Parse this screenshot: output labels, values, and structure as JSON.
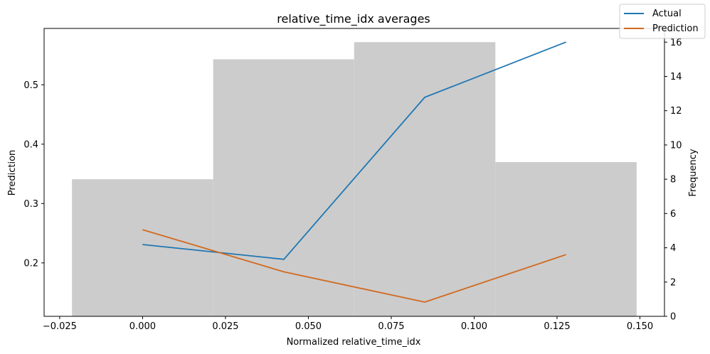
{
  "chart_data": {
    "type": "line",
    "title": "relative_time_idx averages",
    "xlabel": "Normalized relative_time_idx",
    "ylabel": "Prediction",
    "y2label": "Frequency",
    "xlim": [
      -0.0297,
      0.1574
    ],
    "ylim": [
      0.11,
      0.595
    ],
    "y2lim": [
      0,
      16.8
    ],
    "xticks": [
      -0.025,
      0.0,
      0.025,
      0.05,
      0.075,
      0.1,
      0.125,
      0.15
    ],
    "xtick_labels": [
      "−0.025",
      "0.000",
      "0.025",
      "0.050",
      "0.075",
      "0.100",
      "0.125",
      "0.150"
    ],
    "yticks": [
      0.2,
      0.3,
      0.4,
      0.5
    ],
    "ytick_labels": [
      "0.2",
      "0.3",
      "0.4",
      "0.5"
    ],
    "y2ticks": [
      0,
      2,
      4,
      6,
      8,
      10,
      12,
      14,
      16
    ],
    "y2tick_labels": [
      "0",
      "2",
      "4",
      "6",
      "8",
      "10",
      "12",
      "14",
      "16"
    ],
    "histogram": {
      "color": "#cccccc",
      "bins": [
        {
          "x0": -0.0213,
          "x1": 0.0213,
          "count": 8
        },
        {
          "x0": 0.0213,
          "x1": 0.0638,
          "count": 15
        },
        {
          "x0": 0.0638,
          "x1": 0.1064,
          "count": 16
        },
        {
          "x0": 0.1064,
          "x1": 0.149,
          "count": 9
        }
      ]
    },
    "x": [
      0.0,
      0.0426,
      0.0851,
      0.1277
    ],
    "series": [
      {
        "name": "Actual",
        "color": "#1f77b4",
        "values": [
          0.231,
          0.206,
          0.479,
          0.572
        ]
      },
      {
        "name": "Prediction",
        "color": "#d2691e",
        "values": [
          0.256,
          0.185,
          0.134,
          0.214
        ]
      }
    ],
    "legend_position": "top-right",
    "grid": false
  }
}
